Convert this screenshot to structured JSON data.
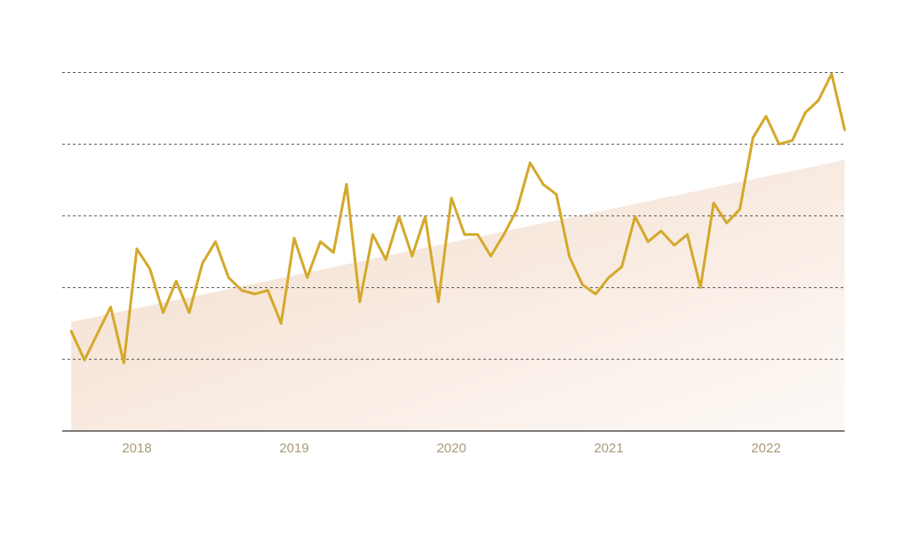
{
  "chart_data": {
    "type": "line",
    "x": [
      2017.583,
      2017.667,
      2017.75,
      2017.833,
      2017.917,
      2018.0,
      2018.083,
      2018.167,
      2018.25,
      2018.333,
      2018.417,
      2018.5,
      2018.583,
      2018.667,
      2018.75,
      2018.833,
      2018.917,
      2019.0,
      2019.083,
      2019.167,
      2019.25,
      2019.333,
      2019.417,
      2019.5,
      2019.583,
      2019.667,
      2019.75,
      2019.833,
      2019.917,
      2020.0,
      2020.083,
      2020.167,
      2020.25,
      2020.333,
      2020.417,
      2020.5,
      2020.583,
      2020.667,
      2020.75,
      2020.833,
      2020.917,
      2021.0,
      2021.083,
      2021.167,
      2021.25,
      2021.333,
      2021.417,
      2021.5,
      2021.583,
      2021.667,
      2021.75,
      2021.833,
      2021.917,
      2022.0,
      2022.083,
      2022.167,
      2022.25,
      2022.333,
      2022.417,
      2022.5
    ],
    "series": [
      {
        "color": "#d4a82a",
        "values": [
          1.39,
          0.99,
          1.36,
          1.73,
          0.95,
          2.54,
          2.26,
          1.65,
          2.09,
          1.65,
          2.34,
          2.64,
          2.14,
          1.96,
          1.91,
          1.96,
          1.5,
          2.69,
          2.14,
          2.64,
          2.49,
          3.44,
          1.8,
          2.74,
          2.39,
          2.99,
          2.44,
          2.99,
          1.8,
          3.25,
          2.74,
          2.74,
          2.44,
          2.74,
          3.09,
          3.74,
          3.44,
          3.3,
          2.43,
          2.04,
          1.91,
          2.14,
          2.29,
          2.99,
          2.64,
          2.79,
          2.59,
          2.74,
          2.0,
          3.18,
          2.9,
          3.09,
          4.09,
          4.39,
          4.0,
          4.05,
          4.44,
          4.61,
          4.98,
          4.2
        ]
      }
    ],
    "trend": {
      "x": [
        2017.583,
        2022.5
      ],
      "values": [
        1.52,
        3.78
      ]
    },
    "xlim": [
      2017.5,
      2022.5
    ],
    "xticks": [
      2018,
      2019,
      2020,
      2021,
      2022
    ],
    "ylim": [
      0,
      5
    ],
    "yticks": [
      1,
      2,
      3,
      4,
      5
    ],
    "grid": true
  }
}
